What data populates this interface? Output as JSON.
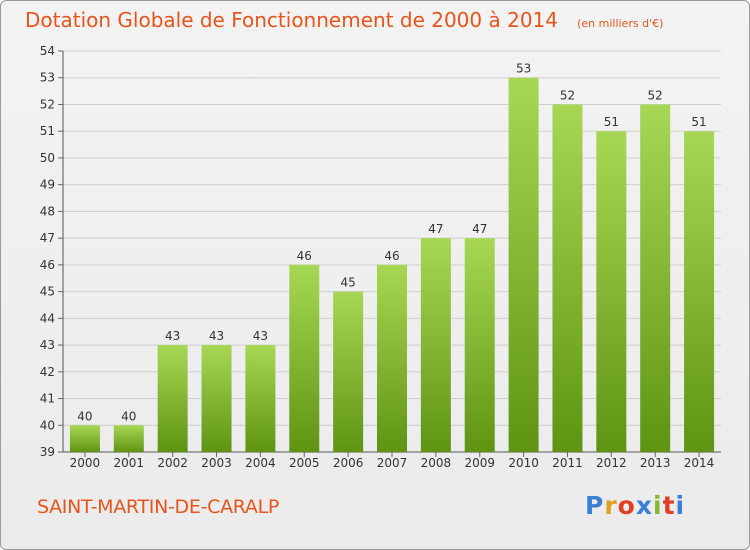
{
  "title": "Dotation Globale de Fonctionnement de 2000 à 2014",
  "unit_note": "(en milliers d'€)",
  "commune": "SAINT-MARTIN-DE-CARALP",
  "logo": {
    "letters": [
      "P",
      "r",
      "o",
      "x",
      "i",
      "t",
      "i"
    ],
    "colors": [
      "#3a7fd6",
      "#e0a020",
      "#e04020",
      "#3a7fd6",
      "#80b830",
      "#e04020",
      "#3a7fd6"
    ]
  },
  "colors": {
    "accent": "#e8541b",
    "bar_light": "#a6d855",
    "bar_dark": "#5f9412",
    "grid": "#cfcfcf",
    "text": "#333333"
  },
  "chart_data": {
    "type": "bar",
    "title": "Dotation Globale de Fonctionnement de 2000 à 2014",
    "xlabel": "",
    "ylabel": "",
    "categories": [
      "2000",
      "2001",
      "2002",
      "2003",
      "2004",
      "2005",
      "2006",
      "2007",
      "2008",
      "2009",
      "2010",
      "2011",
      "2012",
      "2013",
      "2014"
    ],
    "values": [
      40,
      40,
      43,
      43,
      43,
      46,
      45,
      46,
      47,
      47,
      53,
      52,
      51,
      52,
      51
    ],
    "ylim": [
      39,
      54
    ],
    "yticks": [
      39,
      40,
      41,
      42,
      43,
      44,
      45,
      46,
      47,
      48,
      49,
      50,
      51,
      52,
      53,
      54
    ],
    "grid": true,
    "legend": "none"
  }
}
